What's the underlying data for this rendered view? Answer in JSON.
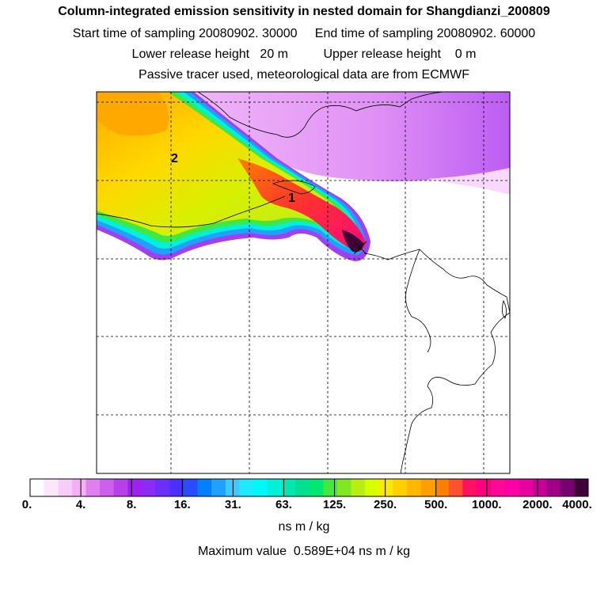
{
  "title": "Column-integrated emission sensitivity in nested domain for Shangdianzi_200809",
  "sampling_line": "Start time of sampling 20080902. 30000     End time of sampling 20080902. 60000",
  "release_line": "Lower release height   20 m          Upper release height    0 m",
  "tracer_line": "Passive tracer used, meteorological data are from ECMWF",
  "map": {
    "labels": [
      "1",
      "2"
    ],
    "release_site_icon": "cross-marker-icon"
  },
  "colorbar": {
    "ticks": [
      "0.",
      "4.",
      "8.",
      "16.",
      "31.",
      "63.",
      "125.",
      "250.",
      "500.",
      "1000.",
      "2000.",
      "4000."
    ],
    "colors": [
      "#ffffff",
      "#fce6fc",
      "#f8ccf8",
      "#f4b0f4",
      "#e080f0",
      "#cc60ec",
      "#b840e8",
      "#a020f0",
      "#8a2cf4",
      "#6a30f8",
      "#4a30ff",
      "#2a4cff",
      "#0080ff",
      "#20a0ff",
      "#40c8ff",
      "#20e8ff",
      "#00f8f8",
      "#00f0d8",
      "#00e8b0",
      "#00e090",
      "#00e870",
      "#40e840",
      "#80e820",
      "#b8ee10",
      "#d8ff00",
      "#ffe800",
      "#ffd000",
      "#ffb800",
      "#ffa000",
      "#ff8000",
      "#ff5030",
      "#ff1060",
      "#ff0080",
      "#ff0898",
      "#ff00a8",
      "#e800a0",
      "#c80098",
      "#a00088",
      "#780070",
      "#400038"
    ],
    "unit": "ns m / kg"
  },
  "maximum_line": "Maximum value  0.589E+04 ns m / kg"
}
